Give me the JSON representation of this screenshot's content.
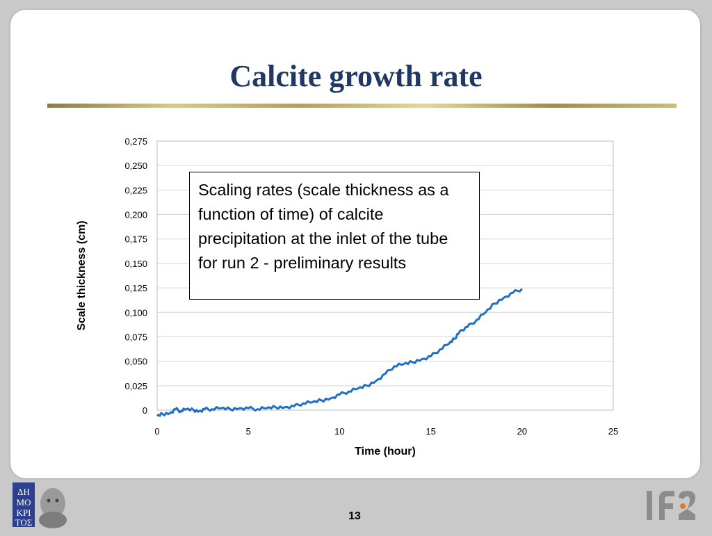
{
  "slide": {
    "title": "Calcite growth rate",
    "page_number": "13",
    "annotation": "Scaling rates (scale thickness as a function of time) of calcite precipitation at the inlet of the tube for run 2 - preliminary results",
    "logo_left_text": "ΔΗΜΟΚΡΙΤΟΣ",
    "logo_right_text": "IFE",
    "colors": {
      "title": "#1f3864",
      "series": "#1f6fc6",
      "logo_orange": "#e07a2e",
      "logo_gray": "#8c8c8c"
    }
  },
  "chart_data": {
    "type": "line",
    "title": "",
    "xlabel": "Time (hour)",
    "ylabel": "Scale thickness (cm)",
    "xlim": [
      0,
      25
    ],
    "ylim": [
      0,
      0.275
    ],
    "x_ticks": [
      "0",
      "5",
      "10",
      "15",
      "20",
      "25"
    ],
    "y_ticks": [
      "0",
      "0,025",
      "0,050",
      "0,075",
      "0,100",
      "0,125",
      "0,150",
      "0,175",
      "0,200",
      "0,225",
      "0,250",
      "0,275"
    ],
    "grid": true,
    "legend": "none",
    "series": [
      {
        "x": [
          0,
          0.3,
          0.7,
          1.0,
          1.3,
          1.6,
          2.0,
          2.3,
          2.6,
          3.0,
          3.5,
          4.0,
          4.5,
          5.0,
          5.5,
          6.0,
          6.5,
          7.0,
          7.5,
          8.0,
          8.5,
          9.0,
          9.5,
          10.0,
          10.5,
          11.0,
          11.5,
          12.0,
          12.5,
          13.0,
          13.5,
          14.0,
          14.5,
          15.0,
          15.5,
          16.0,
          16.3,
          16.6,
          17.0,
          17.5,
          18.0,
          18.5,
          19.0,
          19.5,
          20.0
        ],
        "y": [
          -0.006,
          -0.004,
          -0.003,
          0.001,
          -0.001,
          0.001,
          0.0,
          -0.001,
          0.001,
          0.001,
          0.002,
          0.001,
          0.002,
          0.002,
          0.001,
          0.002,
          0.003,
          0.003,
          0.004,
          0.007,
          0.008,
          0.01,
          0.012,
          0.016,
          0.019,
          0.022,
          0.025,
          0.03,
          0.037,
          0.045,
          0.047,
          0.049,
          0.052,
          0.055,
          0.062,
          0.068,
          0.073,
          0.081,
          0.085,
          0.092,
          0.1,
          0.109,
          0.115,
          0.12,
          0.124
        ]
      }
    ]
  }
}
